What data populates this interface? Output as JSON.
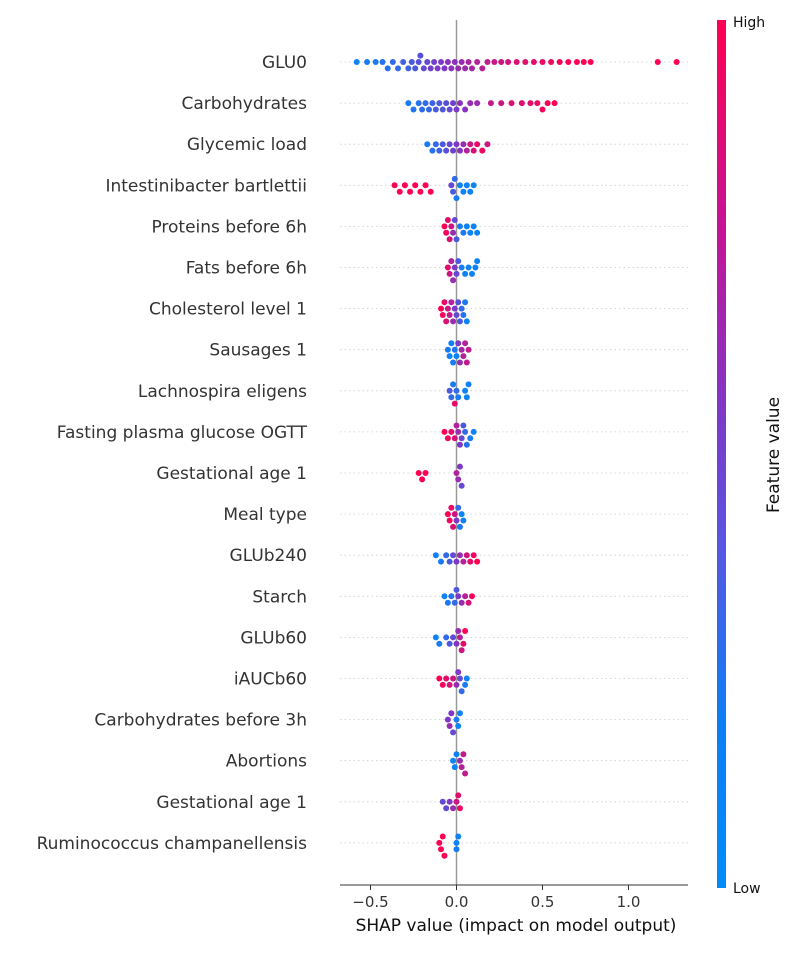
{
  "chart_data": {
    "type": "scatter",
    "subtype": "shap-beeswarm",
    "xlabel": "SHAP value (impact on model output)",
    "xticks": [
      -0.5,
      0.0,
      0.5,
      1.0
    ],
    "xtick_labels": [
      "−0.5",
      "0.0",
      "0.5",
      "1.0"
    ],
    "xlim": [
      -0.68,
      1.35
    ],
    "colorbar": {
      "label": "Feature value",
      "high_label": "High",
      "low_label": "Low",
      "colors": [
        "#008bfb",
        "#7e38c8",
        "#ff0052"
      ]
    },
    "features": [
      {
        "name": "GLU0",
        "points": [
          [
            -0.6,
            0.05
          ],
          [
            -0.55,
            0.1
          ],
          [
            -0.5,
            0.15
          ],
          [
            -0.45,
            0.2
          ],
          [
            -0.4,
            0.2
          ],
          [
            -0.35,
            0.25
          ],
          [
            -0.3,
            0.3
          ],
          [
            -0.25,
            0.35
          ],
          [
            -0.22,
            0.4
          ],
          [
            -0.18,
            0.45
          ],
          [
            -0.12,
            0.5
          ],
          [
            -0.05,
            0.55
          ],
          [
            0.0,
            0.55
          ],
          [
            0.05,
            0.6
          ],
          [
            0.1,
            0.62
          ],
          [
            0.15,
            0.7
          ],
          [
            0.2,
            0.75
          ],
          [
            0.3,
            0.8
          ],
          [
            0.4,
            0.85
          ],
          [
            0.5,
            0.9
          ],
          [
            0.6,
            0.95
          ],
          [
            0.7,
            1.0
          ],
          [
            0.78,
            1.0
          ],
          [
            1.17,
            1.0
          ],
          [
            1.28,
            1.0
          ]
        ],
        "pts": [
          [
            -0.58,
            0.05
          ],
          [
            -0.52,
            0.1
          ],
          [
            -0.47,
            0.1
          ],
          [
            -0.43,
            0.15
          ],
          [
            -0.4,
            0.15
          ],
          [
            -0.37,
            0.2
          ],
          [
            -0.34,
            0.2
          ],
          [
            -0.31,
            0.25
          ],
          [
            -0.28,
            0.25
          ],
          [
            -0.26,
            0.3
          ],
          [
            -0.24,
            0.3
          ],
          [
            -0.22,
            0.35
          ],
          [
            -0.21,
            0.35
          ],
          [
            -0.19,
            0.4
          ],
          [
            -0.17,
            0.4
          ],
          [
            -0.15,
            0.45
          ],
          [
            -0.13,
            0.45
          ],
          [
            -0.11,
            0.5
          ],
          [
            -0.09,
            0.5
          ],
          [
            -0.07,
            0.5
          ],
          [
            -0.05,
            0.55
          ],
          [
            -0.03,
            0.55
          ],
          [
            -0.01,
            0.55
          ],
          [
            0.01,
            0.6
          ],
          [
            0.03,
            0.6
          ],
          [
            0.05,
            0.6
          ],
          [
            0.07,
            0.65
          ],
          [
            0.09,
            0.65
          ],
          [
            0.12,
            0.7
          ],
          [
            0.15,
            0.72
          ],
          [
            0.18,
            0.75
          ],
          [
            0.22,
            0.78
          ],
          [
            0.26,
            0.8
          ],
          [
            0.3,
            0.82
          ],
          [
            0.35,
            0.85
          ],
          [
            0.4,
            0.88
          ],
          [
            0.45,
            0.9
          ],
          [
            0.5,
            0.92
          ],
          [
            0.55,
            0.94
          ],
          [
            0.6,
            0.96
          ],
          [
            0.65,
            0.97
          ],
          [
            0.7,
            0.98
          ],
          [
            0.74,
            1.0
          ],
          [
            0.78,
            1.0
          ],
          [
            1.17,
            1.0
          ],
          [
            1.28,
            1.0
          ]
        ]
      },
      {
        "name": "Carbohydrates",
        "pts": [
          [
            -0.28,
            0.1
          ],
          [
            -0.25,
            0.12
          ],
          [
            -0.22,
            0.15
          ],
          [
            -0.2,
            0.18
          ],
          [
            -0.18,
            0.2
          ],
          [
            -0.16,
            0.22
          ],
          [
            -0.14,
            0.25
          ],
          [
            -0.12,
            0.28
          ],
          [
            -0.1,
            0.3
          ],
          [
            -0.08,
            0.32
          ],
          [
            -0.06,
            0.35
          ],
          [
            -0.04,
            0.4
          ],
          [
            -0.02,
            0.45
          ],
          [
            0.0,
            0.5
          ],
          [
            0.02,
            0.55
          ],
          [
            0.05,
            0.55
          ],
          [
            0.08,
            0.6
          ],
          [
            0.12,
            0.6
          ],
          [
            0.2,
            0.75
          ],
          [
            0.26,
            0.8
          ],
          [
            0.32,
            0.85
          ],
          [
            0.38,
            0.88
          ],
          [
            0.43,
            0.9
          ],
          [
            0.47,
            0.92
          ],
          [
            0.5,
            0.95
          ],
          [
            0.53,
            0.97
          ],
          [
            0.57,
            1.0
          ]
        ]
      },
      {
        "name": "Glycemic load",
        "pts": [
          [
            -0.17,
            0.1
          ],
          [
            -0.14,
            0.15
          ],
          [
            -0.12,
            0.2
          ],
          [
            -0.1,
            0.25
          ],
          [
            -0.08,
            0.3
          ],
          [
            -0.06,
            0.35
          ],
          [
            -0.04,
            0.4
          ],
          [
            -0.02,
            0.45
          ],
          [
            0.0,
            0.5
          ],
          [
            0.02,
            0.55
          ],
          [
            0.04,
            0.6
          ],
          [
            0.06,
            0.7
          ],
          [
            0.08,
            0.8
          ],
          [
            0.1,
            0.85
          ],
          [
            0.12,
            0.9
          ],
          [
            0.15,
            0.95
          ],
          [
            0.18,
            0.8
          ]
        ]
      },
      {
        "name": "Intestinibacter bartlettii",
        "pts": [
          [
            -0.36,
            1.0
          ],
          [
            -0.33,
            1.0
          ],
          [
            -0.3,
            1.0
          ],
          [
            -0.27,
            1.0
          ],
          [
            -0.24,
            1.0
          ],
          [
            -0.21,
            1.0
          ],
          [
            -0.18,
            1.0
          ],
          [
            -0.15,
            1.0
          ],
          [
            -0.03,
            0.4
          ],
          [
            -0.02,
            0.3
          ],
          [
            -0.01,
            0.2
          ],
          [
            0.0,
            0.1
          ],
          [
            0.02,
            0.05
          ],
          [
            0.04,
            0.05
          ],
          [
            0.06,
            0.05
          ],
          [
            0.08,
            0.05
          ],
          [
            0.1,
            0.05
          ]
        ]
      },
      {
        "name": "Proteins before 6h",
        "pts": [
          [
            -0.07,
            1.0
          ],
          [
            -0.06,
            0.95
          ],
          [
            -0.05,
            0.9
          ],
          [
            -0.04,
            0.85
          ],
          [
            -0.03,
            0.8
          ],
          [
            -0.02,
            0.6
          ],
          [
            -0.01,
            0.4
          ],
          [
            0.0,
            0.3
          ],
          [
            0.02,
            0.1
          ],
          [
            0.04,
            0.1
          ],
          [
            0.06,
            0.05
          ],
          [
            0.08,
            0.05
          ],
          [
            0.1,
            0.05
          ],
          [
            0.12,
            0.05
          ]
        ]
      },
      {
        "name": "Fats before 6h",
        "pts": [
          [
            -0.05,
            0.9
          ],
          [
            -0.04,
            0.8
          ],
          [
            -0.03,
            0.7
          ],
          [
            -0.02,
            0.6
          ],
          [
            -0.01,
            0.5
          ],
          [
            0.0,
            0.4
          ],
          [
            0.01,
            0.3
          ],
          [
            0.03,
            0.1
          ],
          [
            0.05,
            0.05
          ],
          [
            0.07,
            0.05
          ],
          [
            0.09,
            0.05
          ],
          [
            0.11,
            0.05
          ],
          [
            0.12,
            0.05
          ]
        ]
      },
      {
        "name": "Cholesterol level 1",
        "pts": [
          [
            -0.09,
            1.0
          ],
          [
            -0.08,
            0.95
          ],
          [
            -0.07,
            0.9
          ],
          [
            -0.06,
            0.85
          ],
          [
            -0.05,
            0.8
          ],
          [
            -0.04,
            0.75
          ],
          [
            -0.03,
            0.7
          ],
          [
            -0.02,
            0.6
          ],
          [
            -0.01,
            0.5
          ],
          [
            0.0,
            0.4
          ],
          [
            0.01,
            0.35
          ],
          [
            0.02,
            0.3
          ],
          [
            0.03,
            0.2
          ],
          [
            0.04,
            0.15
          ],
          [
            0.05,
            0.1
          ],
          [
            0.06,
            0.05
          ]
        ]
      },
      {
        "name": "Sausages 1",
        "pts": [
          [
            -0.05,
            0.1
          ],
          [
            -0.04,
            0.05
          ],
          [
            -0.03,
            0.05
          ],
          [
            -0.02,
            0.1
          ],
          [
            -0.01,
            0.1
          ],
          [
            0.0,
            0.05
          ],
          [
            0.01,
            0.5
          ],
          [
            0.02,
            0.6
          ],
          [
            0.03,
            0.65
          ],
          [
            0.04,
            0.7
          ],
          [
            0.05,
            0.7
          ],
          [
            0.06,
            0.75
          ],
          [
            0.07,
            0.75
          ]
        ]
      },
      {
        "name": "Lachnospira eligens",
        "pts": [
          [
            -0.04,
            0.3
          ],
          [
            -0.03,
            0.2
          ],
          [
            -0.02,
            0.1
          ],
          [
            -0.01,
            0.9
          ],
          [
            0.0,
            0.2
          ],
          [
            0.01,
            0.1
          ],
          [
            0.05,
            0.05
          ],
          [
            0.06,
            0.05
          ],
          [
            0.07,
            0.05
          ]
        ]
      },
      {
        "name": "Fasting plasma glucose OGTT",
        "pts": [
          [
            -0.07,
            1.0
          ],
          [
            -0.05,
            0.95
          ],
          [
            -0.03,
            0.9
          ],
          [
            -0.01,
            0.85
          ],
          [
            0.0,
            0.7
          ],
          [
            0.01,
            0.6
          ],
          [
            0.02,
            0.5
          ],
          [
            0.03,
            0.4
          ],
          [
            0.04,
            0.3
          ],
          [
            0.05,
            0.2
          ],
          [
            0.06,
            0.15
          ],
          [
            0.08,
            0.1
          ],
          [
            0.1,
            0.05
          ]
        ]
      },
      {
        "name": "Gestational age 1",
        "pts": [
          [
            -0.22,
            1.0
          ],
          [
            -0.2,
            1.0
          ],
          [
            -0.18,
            1.0
          ],
          [
            0.0,
            0.7
          ],
          [
            0.01,
            0.6
          ],
          [
            0.02,
            0.5
          ],
          [
            0.03,
            0.4
          ]
        ]
      },
      {
        "name": "Meal type",
        "pts": [
          [
            -0.05,
            1.0
          ],
          [
            -0.04,
            0.95
          ],
          [
            -0.03,
            0.9
          ],
          [
            -0.02,
            0.85
          ],
          [
            -0.01,
            0.8
          ],
          [
            0.0,
            0.5
          ],
          [
            0.01,
            0.2
          ],
          [
            0.02,
            0.1
          ],
          [
            0.03,
            0.05
          ],
          [
            0.04,
            0.05
          ]
        ]
      },
      {
        "name": "GLUb240",
        "pts": [
          [
            -0.12,
            0.05
          ],
          [
            -0.09,
            0.1
          ],
          [
            -0.06,
            0.2
          ],
          [
            -0.04,
            0.3
          ],
          [
            -0.02,
            0.4
          ],
          [
            0.0,
            0.5
          ],
          [
            0.02,
            0.6
          ],
          [
            0.04,
            0.7
          ],
          [
            0.06,
            0.8
          ],
          [
            0.08,
            0.9
          ],
          [
            0.1,
            0.95
          ],
          [
            0.12,
            1.0
          ]
        ]
      },
      {
        "name": "Starch",
        "pts": [
          [
            -0.07,
            0.05
          ],
          [
            -0.05,
            0.1
          ],
          [
            -0.03,
            0.15
          ],
          [
            -0.01,
            0.2
          ],
          [
            0.0,
            0.3
          ],
          [
            0.01,
            0.5
          ],
          [
            0.03,
            0.6
          ],
          [
            0.05,
            0.7
          ],
          [
            0.07,
            0.85
          ],
          [
            0.09,
            0.95
          ]
        ]
      },
      {
        "name": "GLUb60",
        "pts": [
          [
            -0.12,
            0.05
          ],
          [
            -0.1,
            0.1
          ],
          [
            -0.06,
            0.2
          ],
          [
            -0.04,
            0.3
          ],
          [
            -0.02,
            0.4
          ],
          [
            0.0,
            0.5
          ],
          [
            0.01,
            0.6
          ],
          [
            0.02,
            0.7
          ],
          [
            0.03,
            0.8
          ],
          [
            0.04,
            0.9
          ],
          [
            0.05,
            1.0
          ]
        ]
      },
      {
        "name": "iAUCb60",
        "pts": [
          [
            -0.1,
            1.0
          ],
          [
            -0.08,
            0.95
          ],
          [
            -0.06,
            0.9
          ],
          [
            -0.04,
            0.85
          ],
          [
            -0.02,
            0.8
          ],
          [
            0.0,
            0.6
          ],
          [
            0.01,
            0.5
          ],
          [
            0.02,
            0.4
          ],
          [
            0.03,
            0.2
          ],
          [
            0.05,
            0.1
          ],
          [
            0.06,
            0.05
          ]
        ]
      },
      {
        "name": "Carbohydrates before 3h",
        "pts": [
          [
            -0.05,
            0.5
          ],
          [
            -0.04,
            0.6
          ],
          [
            -0.03,
            0.5
          ],
          [
            -0.02,
            0.4
          ],
          [
            0.0,
            0.1
          ],
          [
            0.01,
            0.05
          ],
          [
            0.02,
            0.05
          ]
        ]
      },
      {
        "name": "Abortions",
        "pts": [
          [
            -0.02,
            0.05
          ],
          [
            -0.01,
            0.05
          ],
          [
            0.0,
            0.05
          ],
          [
            0.02,
            0.6
          ],
          [
            0.03,
            0.7
          ],
          [
            0.04,
            0.75
          ],
          [
            0.05,
            0.75
          ]
        ]
      },
      {
        "name": "Gestational age 1",
        "pts": [
          [
            -0.08,
            0.4
          ],
          [
            -0.06,
            0.4
          ],
          [
            -0.04,
            0.5
          ],
          [
            -0.02,
            0.6
          ],
          [
            0.0,
            0.8
          ],
          [
            0.01,
            0.9
          ],
          [
            0.02,
            0.95
          ]
        ]
      },
      {
        "name": "Ruminococcus champanellensis",
        "pts": [
          [
            -0.1,
            1.0
          ],
          [
            -0.09,
            1.0
          ],
          [
            -0.08,
            1.0
          ],
          [
            -0.07,
            1.0
          ],
          [
            0.0,
            0.05
          ],
          [
            0.01,
            0.05
          ],
          [
            0.0,
            0.1
          ]
        ]
      }
    ]
  }
}
